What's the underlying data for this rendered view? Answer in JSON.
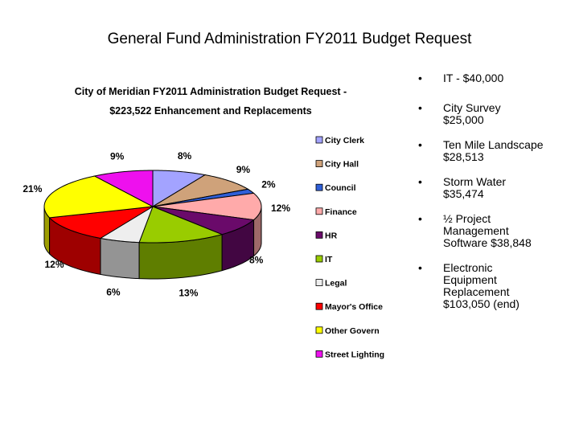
{
  "slide": {
    "title": "General Fund Administration FY2011 Budget Request"
  },
  "chart_data": {
    "type": "pie",
    "title_lines": [
      "City of Meridian FY2011 Administration Budget Request -",
      "$223,522 Enhancement and Replacements"
    ],
    "slices": [
      {
        "name": "City Clerk",
        "label": "8%",
        "color": "#a3a3ff"
      },
      {
        "name": "City Hall",
        "label": "9%",
        "color": "#cfa27a"
      },
      {
        "name": "Council",
        "label": "2%",
        "color": "#2f5fd8"
      },
      {
        "name": "Finance",
        "label": "12%",
        "color": "#ffaaaa"
      },
      {
        "name": "HR",
        "label": "8%",
        "color": "#6a0a6a"
      },
      {
        "name": "IT",
        "label": "13%",
        "color": "#99cc00"
      },
      {
        "name": "Legal",
        "label": "6%",
        "color": "#eeeeee"
      },
      {
        "name": "Mayor's Office",
        "label": "12%",
        "color": "#ff0000"
      },
      {
        "name": "Other Govern",
        "label": "21%",
        "color": "#ffff00"
      },
      {
        "name": "Street Lighting",
        "label": "9%",
        "color": "#ee10ee"
      }
    ],
    "legend_position": "right"
  },
  "bullets": [
    {
      "lines": [
        "IT - $40,000"
      ]
    },
    {
      "lines": [
        "City Survey",
        "$25,000"
      ]
    },
    {
      "lines": [
        "Ten Mile Landscape",
        "$28,513"
      ]
    },
    {
      "lines": [
        "Storm Water",
        "$35,474"
      ]
    },
    {
      "lines": [
        "½ Project",
        "Management",
        "Software  $38,848"
      ]
    },
    {
      "lines": [
        "Electronic",
        "Equipment",
        "Replacement",
        "$103,050 (end)"
      ]
    }
  ]
}
